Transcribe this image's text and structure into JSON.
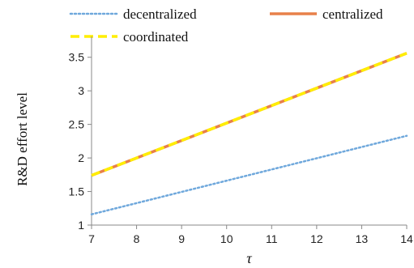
{
  "chart_data": {
    "type": "line",
    "xlabel": "τ",
    "ylabel": "R&D effort level",
    "xlim": [
      7,
      14
    ],
    "ylim": [
      1,
      3.75
    ],
    "x_ticks": [
      "7",
      "8",
      "9",
      "10",
      "11",
      "12",
      "13",
      "14"
    ],
    "y_ticks": [
      "1",
      "1.5",
      "2",
      "2.5",
      "3",
      "3.5"
    ],
    "grid": false,
    "legend_placement": "top",
    "series": [
      {
        "name": "decentralized",
        "x": [
          7,
          14
        ],
        "y": [
          1.16,
          2.33
        ],
        "color": "#6fa8dc",
        "style": "dotted"
      },
      {
        "name": "centralized",
        "x": [
          7,
          14
        ],
        "y": [
          1.74,
          3.56
        ],
        "color": "#e8804a",
        "style": "solid"
      },
      {
        "name": "coordinated",
        "x": [
          7,
          14
        ],
        "y": [
          1.74,
          3.56
        ],
        "color": "#ffee00",
        "style": "dashed"
      }
    ]
  }
}
